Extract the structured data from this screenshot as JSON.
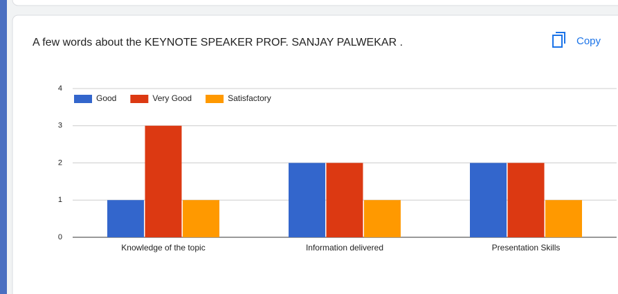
{
  "copy_button": "Copy",
  "chart_data": {
    "type": "bar",
    "title": "A few words about the KEYNOTE SPEAKER PROF. SANJAY PALWEKAR .",
    "categories": [
      "Knowledge of the topic",
      "Information delivered",
      "Presentation Skills"
    ],
    "series": [
      {
        "name": "Good",
        "color": "#3366cc",
        "values": [
          1,
          2,
          2
        ]
      },
      {
        "name": "Very Good",
        "color": "#dc3912",
        "values": [
          3,
          2,
          2
        ]
      },
      {
        "name": "Satisfactory",
        "color": "#ff9900",
        "values": [
          1,
          1,
          1
        ]
      }
    ],
    "ylim": [
      0,
      4
    ],
    "yticks": [
      0,
      1,
      2,
      3,
      4
    ],
    "grid": true,
    "legend": "top-left"
  }
}
